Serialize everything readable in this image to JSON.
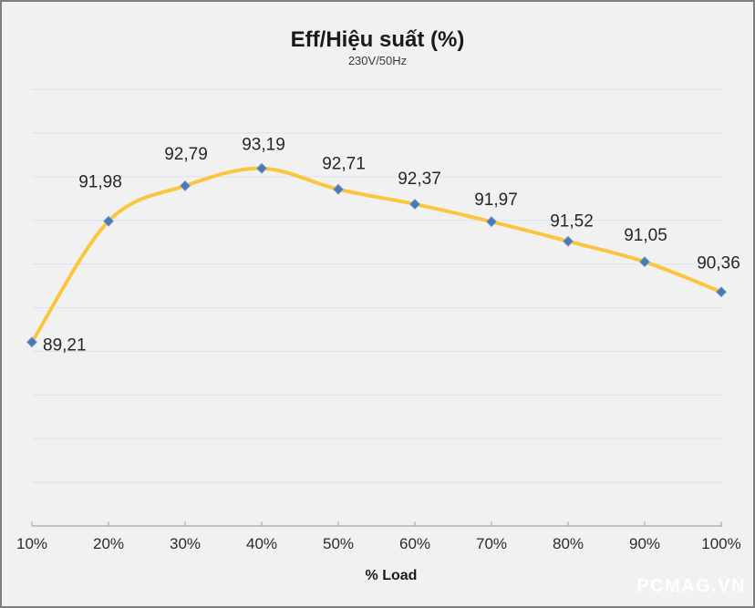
{
  "watermark": "PCMAG.VN",
  "colors": {
    "background": "#F1F1F2",
    "border": "#7E7E7E",
    "gridline": "#DCE5F1",
    "axis_line": "#A6A6A6",
    "label_text": "#262626",
    "tick_text": "#2B2B2B",
    "line": "#FBC63E",
    "marker": "#4A79B4",
    "watermark_text": "#FFFFFF"
  },
  "chart_data": {
    "type": "line",
    "title": "Eff/Hiệu suất (%)",
    "subtitle": "230V/50Hz",
    "xlabel": "% Load",
    "ylabel": "",
    "categories": [
      "10%",
      "20%",
      "30%",
      "40%",
      "50%",
      "60%",
      "70%",
      "80%",
      "90%",
      "100%"
    ],
    "series": [
      {
        "name": "Eff/Hiệu suất (%) 230V/50Hz",
        "values": [
          89.21,
          91.98,
          92.79,
          93.19,
          92.71,
          92.37,
          91.97,
          91.52,
          91.05,
          90.36
        ]
      }
    ],
    "data_labels": [
      "89,21",
      "91,98",
      "92,79",
      "93,19",
      "92,71",
      "92,37",
      "91,97",
      "91,52",
      "91,05",
      "90,36"
    ],
    "ylim": [
      85,
      95
    ],
    "gridline_step": 1,
    "grid": true,
    "y_axis_labels_visible": false,
    "legend_position": "none",
    "smooth": true,
    "marker_shape": "diamond"
  }
}
